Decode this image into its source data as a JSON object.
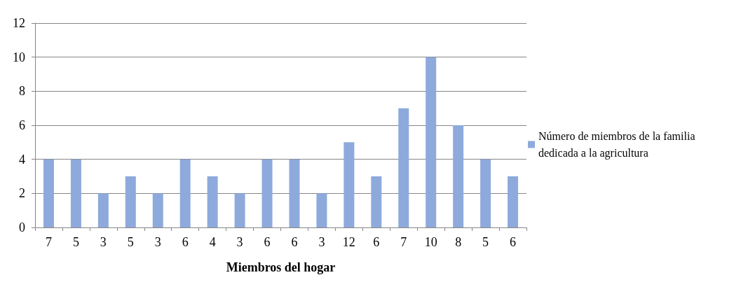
{
  "chart_data": {
    "type": "bar",
    "xlabel": "Miembros del hogar",
    "categories": [
      "7",
      "5",
      "3",
      "5",
      "3",
      "6",
      "4",
      "3",
      "6",
      "6",
      "3",
      "12",
      "6",
      "7",
      "10",
      "8",
      "5",
      "6"
    ],
    "series": [
      {
        "name": "Número de miembros de la familia dedicada a la agricultura",
        "color": "#8eaadc",
        "values": [
          4,
          4,
          2,
          3,
          2,
          4,
          3,
          2,
          4,
          4,
          2,
          5,
          3,
          7,
          10,
          6,
          4,
          3
        ]
      }
    ],
    "ylim": [
      0,
      12
    ],
    "yticks": [
      0,
      2,
      4,
      6,
      8,
      10,
      12
    ],
    "grid": "y",
    "legend": "right"
  }
}
